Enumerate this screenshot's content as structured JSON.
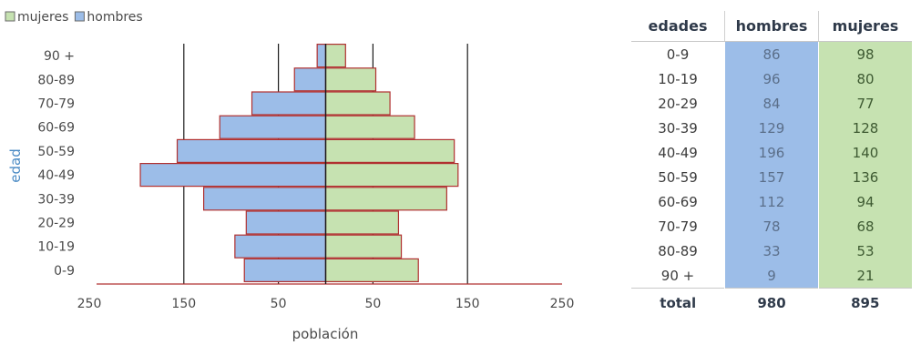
{
  "chart_data": {
    "type": "bar",
    "subtype": "population-pyramid",
    "orientation": "horizontal",
    "categories": [
      "0-9",
      "10-19",
      "20-29",
      "30-39",
      "40-49",
      "50-59",
      "60-69",
      "70-79",
      "80-89",
      "90 +"
    ],
    "series": [
      {
        "name": "mujeres",
        "values": [
          98,
          80,
          77,
          128,
          140,
          136,
          94,
          68,
          53,
          21
        ],
        "color": "#c6e2b1",
        "side": "right"
      },
      {
        "name": "hombres",
        "values": [
          86,
          96,
          84,
          129,
          196,
          157,
          112,
          78,
          33,
          9
        ],
        "color": "#9cbde8",
        "side": "left"
      }
    ],
    "legend": [
      "mujeres",
      "hombres"
    ],
    "legend_position": "top-left",
    "xlabel": "población",
    "ylabel": "edad",
    "xlim": [
      -250,
      250
    ],
    "x_ticks": [
      -250,
      -150,
      -50,
      50,
      150,
      250
    ],
    "x_tick_labels": [
      "250",
      "150",
      "50",
      "50",
      "150",
      "250"
    ],
    "bar_border_color": "#b03030",
    "grid": "vertical lines"
  },
  "table": {
    "headers": [
      "edades",
      "hombres",
      "mujeres"
    ],
    "rows": [
      [
        "0-9",
        "86",
        "98"
      ],
      [
        "10-19",
        "96",
        "80"
      ],
      [
        "20-29",
        "84",
        "77"
      ],
      [
        "30-39",
        "129",
        "128"
      ],
      [
        "40-49",
        "196",
        "140"
      ],
      [
        "50-59",
        "157",
        "136"
      ],
      [
        "60-69",
        "112",
        "94"
      ],
      [
        "70-79",
        "78",
        "68"
      ],
      [
        "80-89",
        "33",
        "53"
      ],
      [
        "90 +",
        "9",
        "21"
      ]
    ],
    "total": [
      "total",
      "980",
      "895"
    ]
  }
}
